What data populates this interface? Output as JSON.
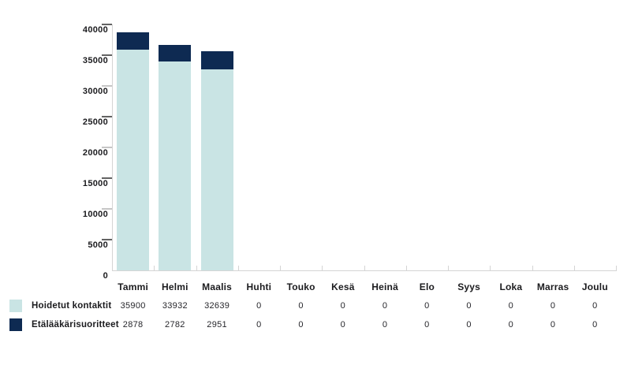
{
  "chart_data": {
    "type": "bar",
    "stacked": true,
    "title": "",
    "xlabel": "",
    "ylabel": "",
    "categories": [
      "Tammi",
      "Helmi",
      "Maalis",
      "Huhti",
      "Touko",
      "Kesä",
      "Heinä",
      "Elo",
      "Syys",
      "Loka",
      "Marras",
      "Joulu"
    ],
    "series": [
      {
        "name": "Hoidetut kontaktit",
        "color": "#c9e4e4",
        "values": [
          35900,
          33932,
          32639,
          0,
          0,
          0,
          0,
          0,
          0,
          0,
          0,
          0
        ]
      },
      {
        "name": "Etälääkärisuoritteet",
        "color": "#0e2a52",
        "values": [
          2878,
          2782,
          2951,
          0,
          0,
          0,
          0,
          0,
          0,
          0,
          0,
          0
        ]
      }
    ],
    "ylim": [
      0,
      40000
    ],
    "yticks": [
      0,
      5000,
      10000,
      15000,
      20000,
      25000,
      30000,
      35000,
      40000
    ],
    "grid": false,
    "legend_position": "bottom-left",
    "value_table_shown": true
  },
  "colors": {
    "background": "#ffffff",
    "axis_line": "#d4d4d4",
    "tick_dark": "#636363",
    "tick_light": "#c6c6c6",
    "label_text": "#1b1b1e",
    "value_text": "#26262b"
  }
}
